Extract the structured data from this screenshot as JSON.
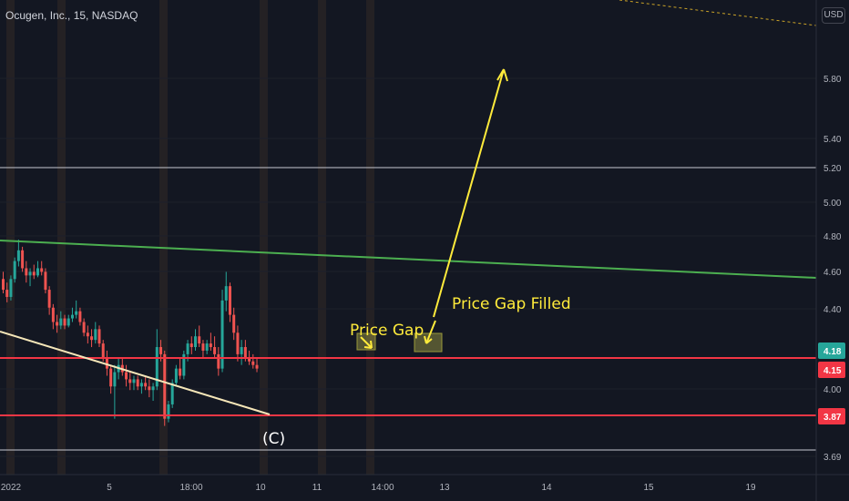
{
  "header": {
    "symbol_line": "Ocugen, Inc., 15, NASDAQ",
    "currency": "USD"
  },
  "colors": {
    "background": "#131722",
    "up": "#26a69a",
    "down": "#ef5350",
    "support_line": "#f23645",
    "trendline_green": "#4caf50",
    "trendline_cream": "#f5e6b8",
    "annotation": "#ffeb3b",
    "session_shade": "#3a2f28"
  },
  "chart_data": {
    "type": "candlestick",
    "symbol": "Ocugen, Inc.",
    "interval": "15",
    "exchange": "NASDAQ",
    "ylim": [
      3.64,
      6.15
    ],
    "y_ticks": [
      "5.80",
      "5.40",
      "5.20",
      "5.00",
      "4.80",
      "4.60",
      "4.40",
      "4.00",
      "3.69"
    ],
    "x_ticks": [
      "2022",
      "5",
      "18:00",
      "10",
      "11",
      "14:00",
      "13",
      "14",
      "15",
      "19"
    ],
    "price_labels": [
      {
        "text": "4.18",
        "value": 4.18,
        "kind": "last"
      },
      {
        "text": "4.15",
        "value": 4.15,
        "kind": "level"
      },
      {
        "text": "3.87",
        "value": 3.87,
        "kind": "level"
      }
    ],
    "horizontal_levels": [
      {
        "value": 5.21,
        "color": "white"
      },
      {
        "value": 4.15,
        "color": "red"
      },
      {
        "value": 3.87,
        "color": "red"
      },
      {
        "value": 3.69,
        "color": "white"
      }
    ],
    "trendlines": [
      {
        "name": "resistance",
        "color": "green",
        "from": {
          "x": "start",
          "y": 4.77
        },
        "to": {
          "x": "end",
          "y": 4.57
        }
      },
      {
        "name": "descending",
        "color": "cream",
        "from": {
          "x": "start",
          "y": 4.3
        },
        "to": {
          "x": "10",
          "y": 3.88
        }
      }
    ],
    "annotations": [
      "Price Gap",
      "Price Gap Filled",
      "(C)"
    ],
    "projection": {
      "from": 4.41,
      "to": 5.88
    },
    "candles": [
      [
        4.68,
        4.72,
        4.6,
        4.62
      ],
      [
        4.62,
        4.66,
        4.55,
        4.58
      ],
      [
        4.58,
        4.7,
        4.56,
        4.68
      ],
      [
        4.68,
        4.8,
        4.66,
        4.78
      ],
      [
        4.78,
        4.9,
        4.75,
        4.84
      ],
      [
        4.84,
        4.86,
        4.72,
        4.74
      ],
      [
        4.74,
        4.78,
        4.66,
        4.7
      ],
      [
        4.7,
        4.74,
        4.64,
        4.72
      ],
      [
        4.72,
        4.76,
        4.68,
        4.7
      ],
      [
        4.7,
        4.78,
        4.69,
        4.74
      ],
      [
        4.74,
        4.78,
        4.7,
        4.72
      ],
      [
        4.72,
        4.74,
        4.6,
        4.62
      ],
      [
        4.62,
        4.64,
        4.48,
        4.52
      ],
      [
        4.52,
        4.54,
        4.4,
        4.44
      ],
      [
        4.44,
        4.48,
        4.38,
        4.42
      ],
      [
        4.42,
        4.5,
        4.4,
        4.46
      ],
      [
        4.46,
        4.48,
        4.4,
        4.42
      ],
      [
        4.42,
        4.48,
        4.41,
        4.46
      ],
      [
        4.46,
        4.52,
        4.44,
        4.48
      ],
      [
        4.48,
        4.56,
        4.46,
        4.5
      ],
      [
        4.5,
        4.52,
        4.42,
        4.44
      ],
      [
        4.44,
        4.46,
        4.36,
        4.38
      ],
      [
        4.38,
        4.42,
        4.32,
        4.36
      ],
      [
        4.36,
        4.4,
        4.3,
        4.34
      ],
      [
        4.34,
        4.44,
        4.32,
        4.4
      ],
      [
        4.4,
        4.42,
        4.3,
        4.32
      ],
      [
        4.32,
        4.34,
        4.22,
        4.24
      ],
      [
        4.24,
        4.28,
        4.14,
        4.18
      ],
      [
        4.18,
        4.2,
        4.04,
        4.08
      ],
      [
        4.08,
        4.2,
        3.9,
        4.16
      ],
      [
        4.16,
        4.24,
        4.12,
        4.2
      ],
      [
        4.2,
        4.24,
        4.14,
        4.16
      ],
      [
        4.16,
        4.2,
        4.08,
        4.12
      ],
      [
        4.12,
        4.16,
        4.06,
        4.1
      ],
      [
        4.1,
        4.14,
        4.06,
        4.12
      ],
      [
        4.12,
        4.14,
        4.06,
        4.08
      ],
      [
        4.08,
        4.12,
        4.04,
        4.1
      ],
      [
        4.1,
        4.14,
        4.06,
        4.08
      ],
      [
        4.08,
        4.12,
        4.02,
        4.06
      ],
      [
        4.06,
        4.1,
        4.0,
        4.08
      ],
      [
        4.08,
        4.4,
        4.06,
        4.3
      ],
      [
        4.3,
        4.34,
        4.22,
        4.26
      ],
      [
        4.26,
        4.28,
        3.86,
        3.9
      ],
      [
        3.9,
        4.0,
        3.88,
        3.98
      ],
      [
        3.98,
        4.12,
        3.96,
        4.1
      ],
      [
        4.1,
        4.2,
        4.08,
        4.18
      ],
      [
        4.18,
        4.24,
        4.12,
        4.14
      ],
      [
        4.14,
        4.28,
        4.12,
        4.26
      ],
      [
        4.26,
        4.34,
        4.22,
        4.32
      ],
      [
        4.32,
        4.36,
        4.26,
        4.3
      ],
      [
        4.3,
        4.4,
        4.28,
        4.36
      ],
      [
        4.36,
        4.42,
        4.3,
        4.32
      ],
      [
        4.32,
        4.34,
        4.24,
        4.28
      ],
      [
        4.28,
        4.34,
        4.26,
        4.32
      ],
      [
        4.32,
        4.38,
        4.28,
        4.3
      ],
      [
        4.3,
        4.36,
        4.24,
        4.26
      ],
      [
        4.26,
        4.3,
        4.14,
        4.18
      ],
      [
        4.18,
        4.62,
        4.16,
        4.56
      ],
      [
        4.56,
        4.72,
        4.5,
        4.64
      ],
      [
        4.64,
        4.66,
        4.44,
        4.48
      ],
      [
        4.48,
        4.52,
        4.34,
        4.38
      ],
      [
        4.38,
        4.42,
        4.22,
        4.26
      ],
      [
        4.26,
        4.34,
        4.2,
        4.3
      ],
      [
        4.3,
        4.34,
        4.22,
        4.24
      ],
      [
        4.24,
        4.28,
        4.2,
        4.22
      ],
      [
        4.22,
        4.26,
        4.18,
        4.2
      ],
      [
        4.2,
        4.24,
        4.16,
        4.18
      ]
    ]
  }
}
